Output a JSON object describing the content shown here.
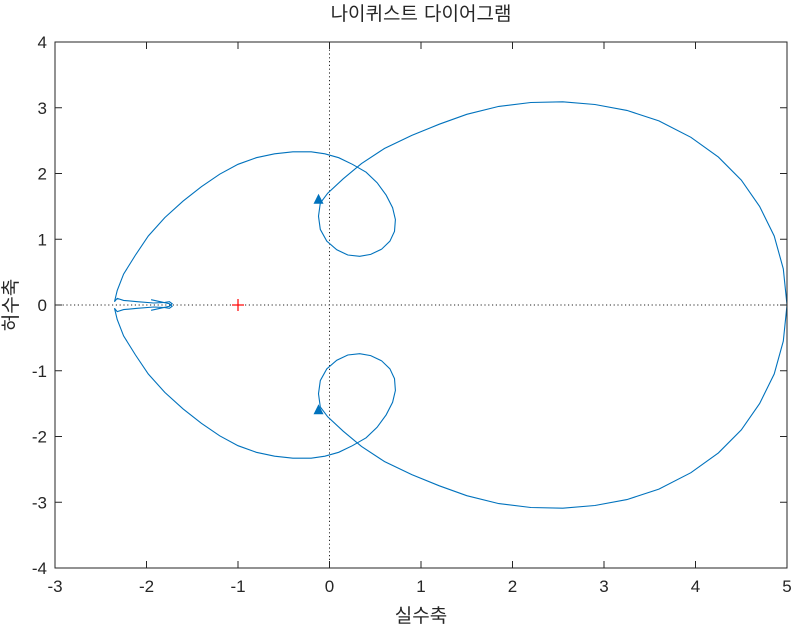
{
  "chart_data": {
    "type": "line",
    "title": "나이퀴스트 다이어그램",
    "xlabel": "실수축",
    "ylabel": "허수축",
    "xlim": [
      -3,
      5
    ],
    "ylim": [
      -4,
      4
    ],
    "xticks": [
      "-3",
      "-2",
      "-1",
      "0",
      "1",
      "2",
      "3",
      "4",
      "5"
    ],
    "yticks": [
      "-4",
      "-3",
      "-2",
      "-1",
      "0",
      "1",
      "2",
      "3",
      "4"
    ],
    "grid": false,
    "zero_lines": true,
    "series_color": "#0072BD",
    "critical_point": {
      "x": -1,
      "y": 0,
      "marker": "+",
      "color": "#FF0000"
    },
    "series": [
      {
        "x": [
          5.0,
          4.96,
          4.86,
          4.7,
          4.5,
          4.25,
          3.95,
          3.6,
          3.25,
          2.9,
          2.55,
          2.2,
          1.85,
          1.5,
          1.2,
          0.9,
          0.6,
          0.35,
          0.15,
          -0.02,
          -0.1,
          -0.12,
          -0.1,
          -0.03,
          0.08,
          0.2,
          0.33,
          0.45,
          0.57,
          0.66,
          0.71,
          0.72,
          0.69,
          0.62,
          0.52,
          0.4,
          0.25,
          0.1,
          -0.05,
          -0.2,
          -0.4,
          -0.6,
          -0.8,
          -1.0,
          -1.2,
          -1.4,
          -1.6,
          -1.8,
          -1.98,
          -2.12,
          -2.25,
          -2.32,
          -2.35,
          -2.32,
          -2.25,
          -2.1,
          -1.92,
          -1.8,
          -1.75,
          -1.72,
          -1.75,
          -1.85,
          -1.95
        ],
        "y": [
          0.0,
          0.55,
          1.05,
          1.5,
          1.9,
          2.25,
          2.55,
          2.8,
          2.96,
          3.05,
          3.09,
          3.08,
          3.02,
          2.9,
          2.75,
          2.58,
          2.38,
          2.15,
          1.92,
          1.7,
          1.55,
          1.35,
          1.15,
          0.97,
          0.84,
          0.76,
          0.74,
          0.77,
          0.85,
          0.97,
          1.12,
          1.3,
          1.48,
          1.67,
          1.86,
          2.02,
          2.14,
          2.24,
          2.3,
          2.33,
          2.33,
          2.3,
          2.24,
          2.14,
          1.99,
          1.8,
          1.58,
          1.33,
          1.05,
          0.76,
          0.47,
          0.22,
          0.05,
          0.1,
          0.07,
          0.05,
          0.03,
          0.04,
          0.05,
          0.02,
          -0.02,
          -0.05,
          -0.08
        ]
      }
    ],
    "arrows": [
      {
        "x": -0.12,
        "y": 1.6,
        "direction": "up"
      },
      {
        "x": -0.12,
        "y": -1.6,
        "direction": "up"
      }
    ]
  }
}
